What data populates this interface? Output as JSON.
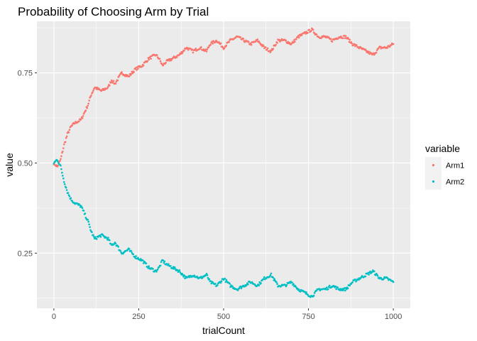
{
  "chart_data": {
    "type": "scatter",
    "title": "Probability of Choosing Arm by Trial",
    "xlabel": "trialCount",
    "ylabel": "value",
    "xlim": [
      -50,
      1050
    ],
    "ylim": [
      0.097,
      0.893
    ],
    "x_ticks": [
      0,
      250,
      500,
      750,
      1000
    ],
    "y_ticks": [
      0.25,
      0.5,
      0.75
    ],
    "x_tick_labels": [
      "0",
      "250",
      "500",
      "750",
      "1000"
    ],
    "y_tick_labels": [
      "0.25",
      "0.50",
      "0.75"
    ],
    "grid": true,
    "legend": {
      "title": "variable",
      "position": "right"
    },
    "series": [
      {
        "name": "Arm1",
        "color": "#F8766D",
        "points": [
          [
            0,
            0.5
          ],
          [
            10,
            0.49
          ],
          [
            20,
            0.51
          ],
          [
            30,
            0.55
          ],
          [
            40,
            0.58
          ],
          [
            50,
            0.6
          ],
          [
            60,
            0.61
          ],
          [
            80,
            0.62
          ],
          [
            100,
            0.66
          ],
          [
            110,
            0.69
          ],
          [
            120,
            0.71
          ],
          [
            140,
            0.7
          ],
          [
            160,
            0.71
          ],
          [
            170,
            0.73
          ],
          [
            180,
            0.72
          ],
          [
            200,
            0.75
          ],
          [
            220,
            0.74
          ],
          [
            240,
            0.76
          ],
          [
            260,
            0.77
          ],
          [
            280,
            0.79
          ],
          [
            300,
            0.8
          ],
          [
            310,
            0.79
          ],
          [
            320,
            0.77
          ],
          [
            330,
            0.78
          ],
          [
            350,
            0.79
          ],
          [
            370,
            0.8
          ],
          [
            390,
            0.82
          ],
          [
            410,
            0.81
          ],
          [
            430,
            0.82
          ],
          [
            450,
            0.81
          ],
          [
            460,
            0.83
          ],
          [
            480,
            0.84
          ],
          [
            500,
            0.82
          ],
          [
            520,
            0.84
          ],
          [
            540,
            0.85
          ],
          [
            560,
            0.84
          ],
          [
            580,
            0.83
          ],
          [
            600,
            0.84
          ],
          [
            620,
            0.82
          ],
          [
            640,
            0.81
          ],
          [
            660,
            0.84
          ],
          [
            680,
            0.84
          ],
          [
            700,
            0.83
          ],
          [
            720,
            0.85
          ],
          [
            740,
            0.86
          ],
          [
            760,
            0.87
          ],
          [
            780,
            0.85
          ],
          [
            800,
            0.85
          ],
          [
            820,
            0.84
          ],
          [
            840,
            0.85
          ],
          [
            860,
            0.85
          ],
          [
            880,
            0.83
          ],
          [
            900,
            0.82
          ],
          [
            920,
            0.81
          ],
          [
            940,
            0.8
          ],
          [
            960,
            0.82
          ],
          [
            980,
            0.82
          ],
          [
            1000,
            0.83
          ]
        ]
      },
      {
        "name": "Arm2",
        "color": "#00BFC4",
        "points": [
          [
            0,
            0.5
          ],
          [
            10,
            0.51
          ],
          [
            20,
            0.49
          ],
          [
            30,
            0.45
          ],
          [
            40,
            0.42
          ],
          [
            50,
            0.4
          ],
          [
            60,
            0.39
          ],
          [
            80,
            0.38
          ],
          [
            100,
            0.34
          ],
          [
            110,
            0.31
          ],
          [
            120,
            0.29
          ],
          [
            140,
            0.3
          ],
          [
            160,
            0.29
          ],
          [
            170,
            0.27
          ],
          [
            180,
            0.28
          ],
          [
            200,
            0.25
          ],
          [
            220,
            0.26
          ],
          [
            240,
            0.24
          ],
          [
            260,
            0.23
          ],
          [
            280,
            0.21
          ],
          [
            300,
            0.2
          ],
          [
            310,
            0.21
          ],
          [
            320,
            0.23
          ],
          [
            330,
            0.22
          ],
          [
            350,
            0.21
          ],
          [
            370,
            0.2
          ],
          [
            390,
            0.18
          ],
          [
            410,
            0.19
          ],
          [
            430,
            0.18
          ],
          [
            450,
            0.19
          ],
          [
            460,
            0.17
          ],
          [
            480,
            0.16
          ],
          [
            500,
            0.18
          ],
          [
            520,
            0.16
          ],
          [
            540,
            0.15
          ],
          [
            560,
            0.16
          ],
          [
            580,
            0.17
          ],
          [
            600,
            0.16
          ],
          [
            620,
            0.18
          ],
          [
            640,
            0.19
          ],
          [
            660,
            0.16
          ],
          [
            680,
            0.16
          ],
          [
            700,
            0.17
          ],
          [
            720,
            0.15
          ],
          [
            740,
            0.14
          ],
          [
            760,
            0.13
          ],
          [
            780,
            0.15
          ],
          [
            800,
            0.15
          ],
          [
            820,
            0.16
          ],
          [
            840,
            0.15
          ],
          [
            860,
            0.15
          ],
          [
            880,
            0.17
          ],
          [
            900,
            0.18
          ],
          [
            920,
            0.19
          ],
          [
            940,
            0.2
          ],
          [
            960,
            0.18
          ],
          [
            980,
            0.18
          ],
          [
            1000,
            0.17
          ]
        ]
      }
    ]
  }
}
